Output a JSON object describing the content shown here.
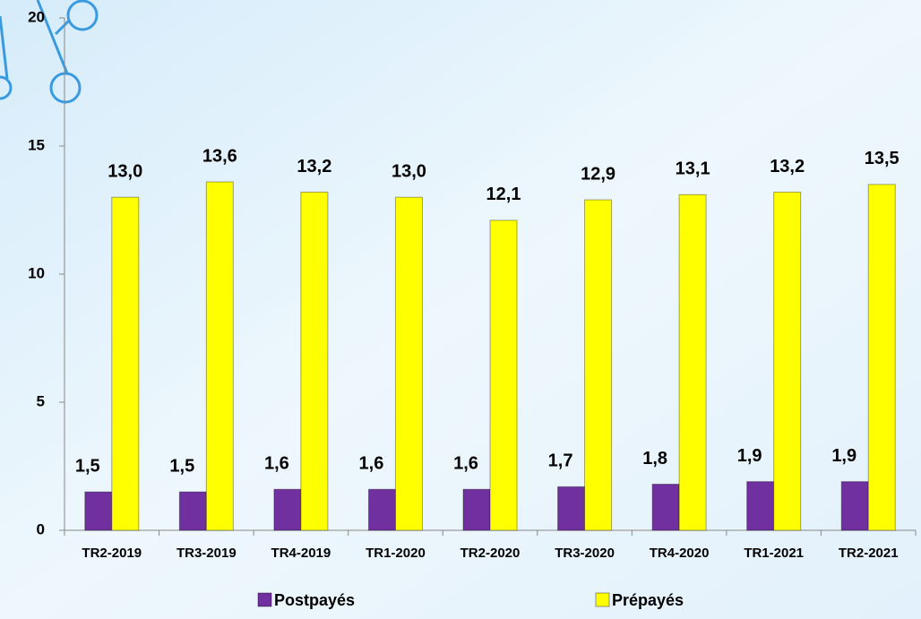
{
  "chart_data": {
    "type": "bar",
    "categories": [
      "TR2-2019",
      "TR3-2019",
      "TR4-2019",
      "TR1-2020",
      "TR2-2020",
      "TR3-2020",
      "TR4-2020",
      "TR1-2021",
      "TR2-2021"
    ],
    "series": [
      {
        "name": "Postpayés",
        "color": "#7030a0",
        "values": [
          1.5,
          1.5,
          1.6,
          1.6,
          1.6,
          1.7,
          1.8,
          1.9,
          1.9
        ],
        "value_labels": [
          "1,5",
          "1,5",
          "1,6",
          "1,6",
          "1,6",
          "1,7",
          "1,8",
          "1,9",
          "1,9"
        ]
      },
      {
        "name": "Prépayés",
        "color": "#ffff00",
        "values": [
          13.0,
          13.6,
          13.2,
          13.0,
          12.1,
          12.9,
          13.1,
          13.2,
          13.5
        ],
        "value_labels": [
          "13,0",
          "13,6",
          "13,2",
          "13,0",
          "12,1",
          "12,9",
          "13,1",
          "13,2",
          "13,5"
        ]
      }
    ],
    "ylim": [
      0,
      20
    ],
    "yticks": [
      0,
      5,
      10,
      15,
      20
    ],
    "legend": "bottom"
  }
}
